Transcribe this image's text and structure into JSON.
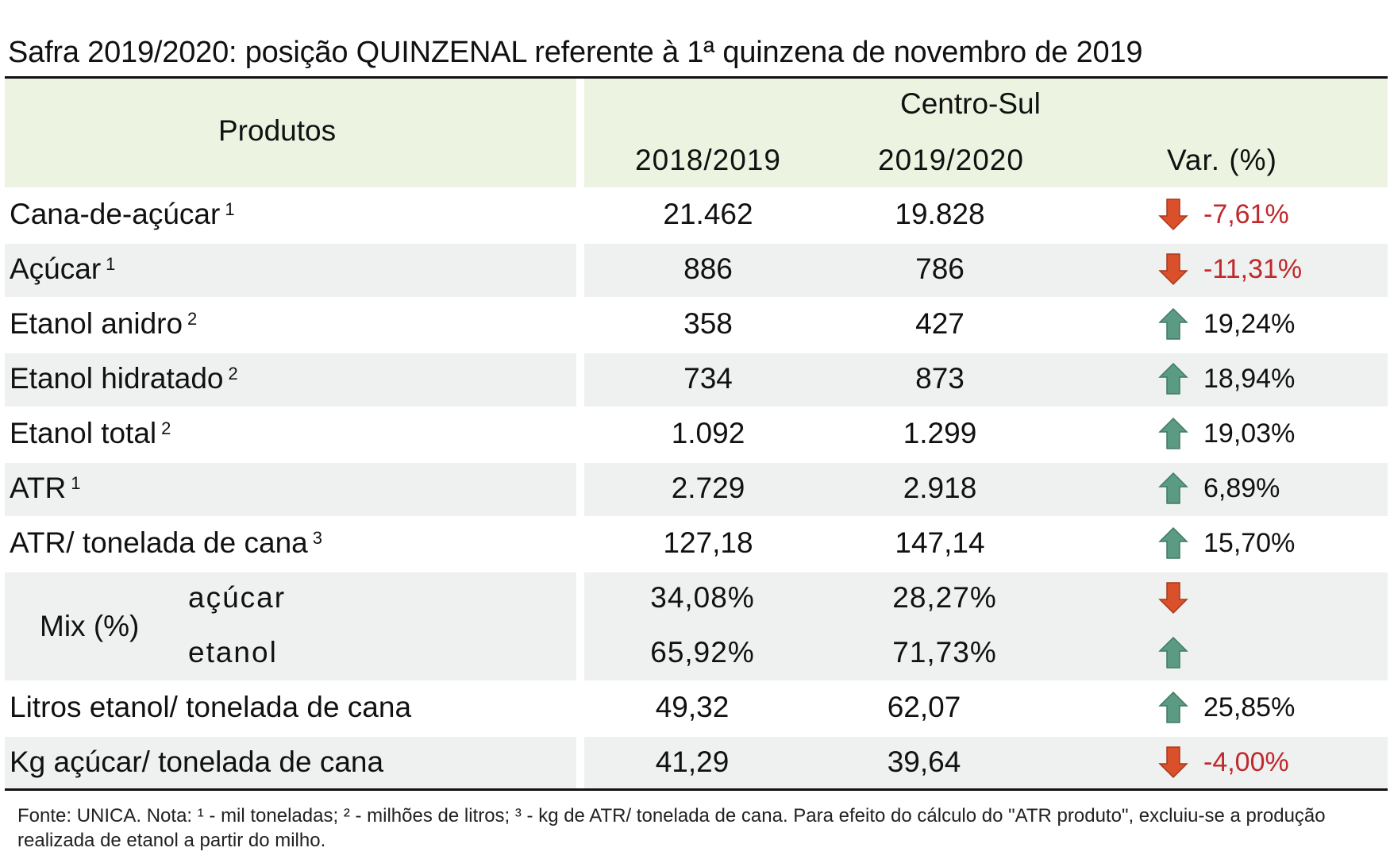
{
  "title": "Safra 2019/2020: posição QUINZENAL referente à 1ª quinzena de novembro de 2019",
  "header": {
    "products_label": "Produtos",
    "region_label": "Centro-Sul",
    "col_2018": "2018/2019",
    "col_2019": "2019/2020",
    "col_var": "Var. (%)"
  },
  "rows": [
    {
      "label": "Cana-de-açúcar",
      "note": "1",
      "v2018": "21.462",
      "v2019": "19.828",
      "var": "-7,61%",
      "trend": "down"
    },
    {
      "label": "Açúcar",
      "note": "1",
      "v2018": "886",
      "v2019": "786",
      "var": "-11,31%",
      "trend": "down"
    },
    {
      "label": "Etanol anidro",
      "note": "2",
      "v2018": "358",
      "v2019": "427",
      "var": "19,24%",
      "trend": "up"
    },
    {
      "label": "Etanol hidratado",
      "note": "2",
      "v2018": "734",
      "v2019": "873",
      "var": "18,94%",
      "trend": "up"
    },
    {
      "label": "Etanol total",
      "note": "2",
      "v2018": "1.092",
      "v2019": "1.299",
      "var": "19,03%",
      "trend": "up"
    },
    {
      "label": "ATR",
      "note": "1",
      "v2018": "2.729",
      "v2019": "2.918",
      "var": "6,89%",
      "trend": "up"
    },
    {
      "label": "ATR/ tonelada de cana",
      "note": "3",
      "v2018": "127,18",
      "v2019": "147,14",
      "var": "15,70%",
      "trend": "up"
    }
  ],
  "mix": {
    "label": "Mix (%)",
    "sugar": {
      "label": "açúcar",
      "v2018": "34,08%",
      "v2019": "28,27%",
      "trend": "down"
    },
    "ethanol": {
      "label": "etanol",
      "v2018": "65,92%",
      "v2019": "71,73%",
      "trend": "up"
    }
  },
  "rows_bottom": [
    {
      "label": "Litros etanol/ tonelada de cana",
      "v2018": "49,32",
      "v2019": "62,07",
      "var": "25,85%",
      "trend": "up"
    },
    {
      "label": "Kg açúcar/ tonelada de cana",
      "v2018": "41,29",
      "v2019": "39,64",
      "var": "-4,00%",
      "trend": "down"
    }
  ],
  "footnote": "Fonte: UNICA. Nota: ¹ - mil toneladas; ² - milhões de litros; ³ - kg de ATR/ tonelada de cana. Para efeito do cálculo do \"ATR produto\", excluiu-se a produção realizada de etanol a partir do milho.",
  "colors": {
    "header_bg": "#ecf4e1",
    "row_shade": "#eef1ef",
    "negative_text": "#c0282d",
    "arrow_down": "#d9502a",
    "arrow_up": "#5b9a83"
  },
  "icons": {
    "up": "arrow-up-icon",
    "down": "arrow-down-icon"
  }
}
